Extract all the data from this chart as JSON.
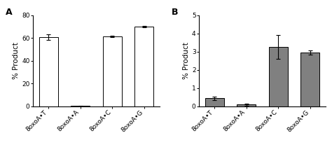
{
  "panel_A": {
    "label": "A",
    "categories": [
      "8oxoA•T",
      "8oxoA•A",
      "8oxoA•C",
      "8oxoA•G"
    ],
    "values": [
      61.0,
      0.3,
      61.5,
      70.0
    ],
    "errors": [
      2.5,
      0.1,
      0.8,
      0.5
    ],
    "bar_color": "#ffffff",
    "bar_edgecolor": "#000000",
    "ylabel": "% Product",
    "ylim": [
      0,
      80
    ],
    "yticks": [
      0,
      20,
      40,
      60,
      80
    ]
  },
  "panel_B": {
    "label": "B",
    "categories": [
      "8oxoA•T",
      "8oxoA•A",
      "8oxoA•C",
      "8oxoA•G"
    ],
    "values": [
      0.45,
      0.1,
      3.25,
      2.95
    ],
    "errors": [
      0.1,
      0.05,
      0.65,
      0.12
    ],
    "bar_color": "#808080",
    "bar_edgecolor": "#000000",
    "ylabel": "% Product",
    "ylim": [
      0,
      5
    ],
    "yticks": [
      0,
      1,
      2,
      3,
      4,
      5
    ]
  },
  "figure_bg": "#ffffff",
  "tick_labelsize": 6.5,
  "ylabel_fontsize": 7.5,
  "panel_label_fontsize": 9,
  "bar_width": 0.6
}
